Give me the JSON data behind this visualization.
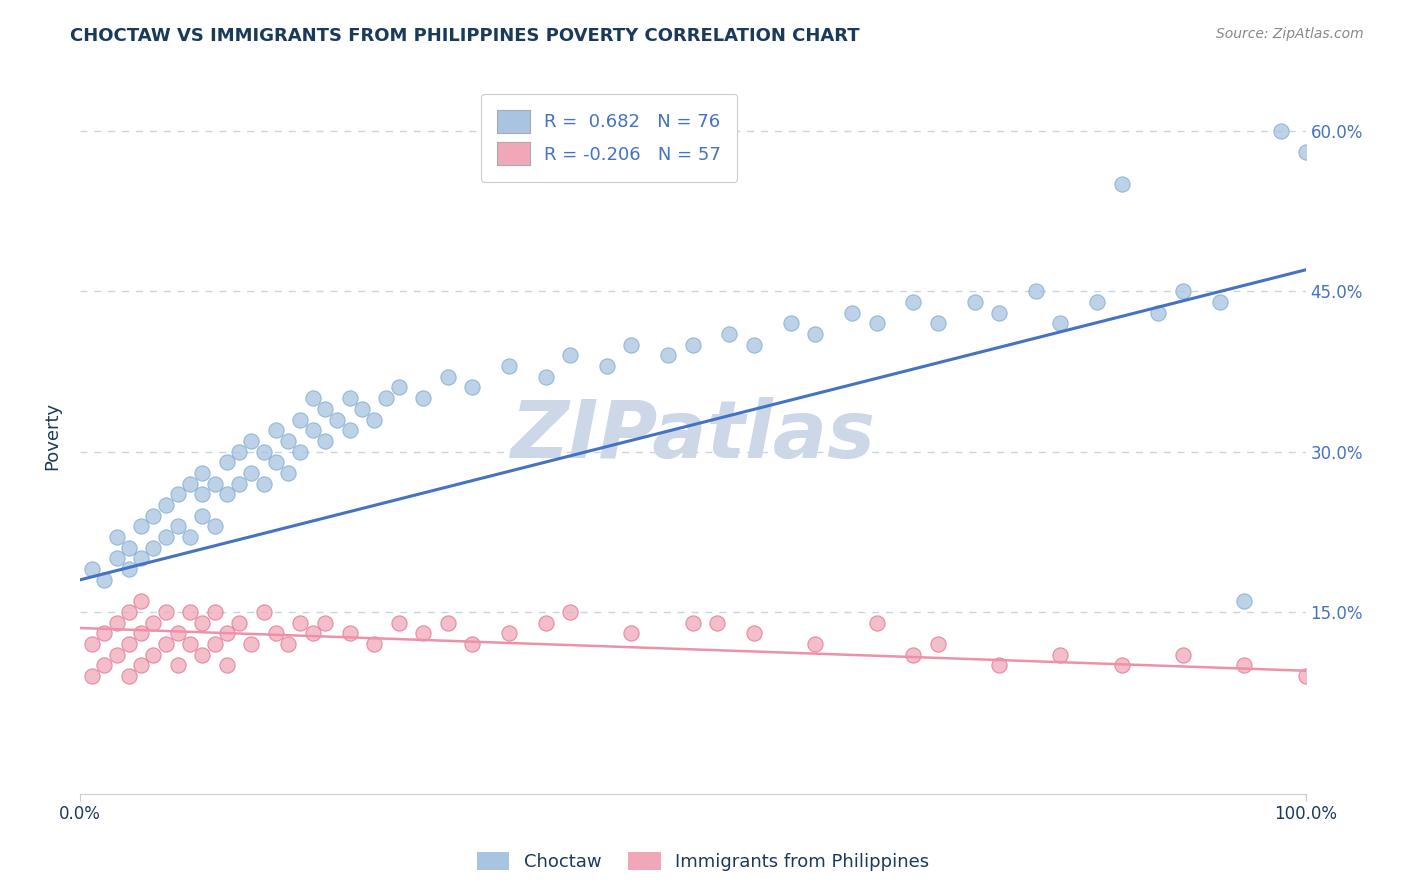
{
  "title": "CHOCTAW VS IMMIGRANTS FROM PHILIPPINES POVERTY CORRELATION CHART",
  "source": "Source: ZipAtlas.com",
  "ylabel": "Poverty",
  "right_yticks": [
    0.0,
    0.15,
    0.3,
    0.45,
    0.6
  ],
  "right_yticklabels": [
    "",
    "15.0%",
    "30.0%",
    "45.0%",
    "60.0%"
  ],
  "watermark": "ZIPatlas",
  "watermark_color": "#ccd8e8",
  "choctaw_color": "#a8c4e0",
  "philippines_color": "#f0a8b8",
  "choctaw_edge_color": "#7aaad0",
  "philippines_edge_color": "#e07090",
  "choctaw_line_color": "#4472c4",
  "philippines_line_color": "#f090a8",
  "background_color": "#ffffff",
  "grid_color": "#c8d4e0",
  "choctaw_scatter_x": [
    0.01,
    0.02,
    0.03,
    0.03,
    0.04,
    0.04,
    0.05,
    0.05,
    0.06,
    0.06,
    0.07,
    0.07,
    0.08,
    0.08,
    0.09,
    0.09,
    0.1,
    0.1,
    0.1,
    0.11,
    0.11,
    0.12,
    0.12,
    0.13,
    0.13,
    0.14,
    0.14,
    0.15,
    0.15,
    0.16,
    0.16,
    0.17,
    0.17,
    0.18,
    0.18,
    0.19,
    0.19,
    0.2,
    0.2,
    0.21,
    0.22,
    0.22,
    0.23,
    0.24,
    0.25,
    0.26,
    0.28,
    0.3,
    0.32,
    0.35,
    0.38,
    0.4,
    0.43,
    0.45,
    0.48,
    0.5,
    0.53,
    0.55,
    0.58,
    0.6,
    0.63,
    0.65,
    0.68,
    0.7,
    0.73,
    0.75,
    0.78,
    0.8,
    0.83,
    0.85,
    0.88,
    0.9,
    0.93,
    0.95,
    0.98,
    1.0
  ],
  "choctaw_scatter_y": [
    0.19,
    0.18,
    0.2,
    0.22,
    0.19,
    0.21,
    0.2,
    0.23,
    0.21,
    0.24,
    0.22,
    0.25,
    0.23,
    0.26,
    0.22,
    0.27,
    0.24,
    0.26,
    0.28,
    0.23,
    0.27,
    0.26,
    0.29,
    0.27,
    0.3,
    0.28,
    0.31,
    0.27,
    0.3,
    0.29,
    0.32,
    0.28,
    0.31,
    0.3,
    0.33,
    0.32,
    0.35,
    0.31,
    0.34,
    0.33,
    0.32,
    0.35,
    0.34,
    0.33,
    0.35,
    0.36,
    0.35,
    0.37,
    0.36,
    0.38,
    0.37,
    0.39,
    0.38,
    0.4,
    0.39,
    0.4,
    0.41,
    0.4,
    0.42,
    0.41,
    0.43,
    0.42,
    0.44,
    0.42,
    0.44,
    0.43,
    0.45,
    0.42,
    0.44,
    0.55,
    0.43,
    0.45,
    0.44,
    0.16,
    0.6,
    0.58
  ],
  "philippines_scatter_x": [
    0.01,
    0.01,
    0.02,
    0.02,
    0.03,
    0.03,
    0.04,
    0.04,
    0.04,
    0.05,
    0.05,
    0.05,
    0.06,
    0.06,
    0.07,
    0.07,
    0.08,
    0.08,
    0.09,
    0.09,
    0.1,
    0.1,
    0.11,
    0.11,
    0.12,
    0.12,
    0.13,
    0.14,
    0.15,
    0.16,
    0.17,
    0.18,
    0.19,
    0.2,
    0.22,
    0.24,
    0.26,
    0.28,
    0.3,
    0.32,
    0.35,
    0.38,
    0.4,
    0.45,
    0.5,
    0.52,
    0.55,
    0.6,
    0.65,
    0.68,
    0.7,
    0.75,
    0.8,
    0.85,
    0.9,
    0.95,
    1.0
  ],
  "philippines_scatter_y": [
    0.09,
    0.12,
    0.1,
    0.13,
    0.11,
    0.14,
    0.09,
    0.12,
    0.15,
    0.1,
    0.13,
    0.16,
    0.11,
    0.14,
    0.12,
    0.15,
    0.1,
    0.13,
    0.12,
    0.15,
    0.11,
    0.14,
    0.12,
    0.15,
    0.1,
    0.13,
    0.14,
    0.12,
    0.15,
    0.13,
    0.12,
    0.14,
    0.13,
    0.14,
    0.13,
    0.12,
    0.14,
    0.13,
    0.14,
    0.12,
    0.13,
    0.14,
    0.15,
    0.13,
    0.14,
    0.14,
    0.13,
    0.12,
    0.14,
    0.11,
    0.12,
    0.1,
    0.11,
    0.1,
    0.11,
    0.1,
    0.09
  ],
  "choctaw_line_x": [
    0.0,
    1.0
  ],
  "choctaw_line_y": [
    0.18,
    0.47
  ],
  "philippines_line_x": [
    0.0,
    1.0
  ],
  "philippines_line_y": [
    0.135,
    0.095
  ],
  "xlim": [
    0.0,
    1.0
  ],
  "ylim": [
    -0.02,
    0.65
  ],
  "title_color": "#1a3a5c",
  "source_color": "#888888",
  "axis_label_color": "#1a3a5c",
  "tick_color": "#1a3a5c",
  "legend_blue_text": "R =  0.682   N = 76",
  "legend_pink_text": "R = -0.206   N = 57",
  "bottom_legend_labels": [
    "Choctaw",
    "Immigrants from Philippines"
  ]
}
